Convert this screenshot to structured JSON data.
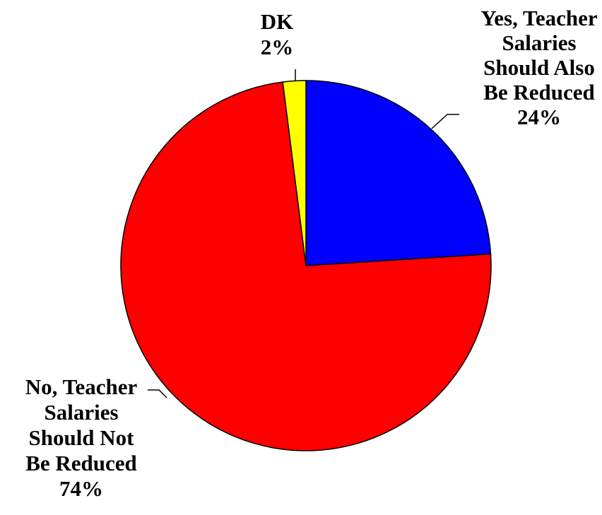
{
  "chart_data": {
    "type": "pie",
    "title": "",
    "start_angle_deg": 0,
    "direction": "clockwise",
    "slices": [
      {
        "label_lines": [
          "Yes, Teacher",
          "Salaries",
          "Should Also",
          "Be Reduced"
        ],
        "value": 24,
        "value_label": "24%",
        "color": "#0000ff"
      },
      {
        "label_lines": [
          "No, Teacher",
          "Salaries",
          "Should Not",
          "Be Reduced"
        ],
        "value": 74,
        "value_label": "74%",
        "color": "#ff0000"
      },
      {
        "label_lines": [
          "DK"
        ],
        "value": 2,
        "value_label": "2%",
        "color": "#ffff00"
      }
    ],
    "legend": "none",
    "outline_color": "#000000"
  }
}
